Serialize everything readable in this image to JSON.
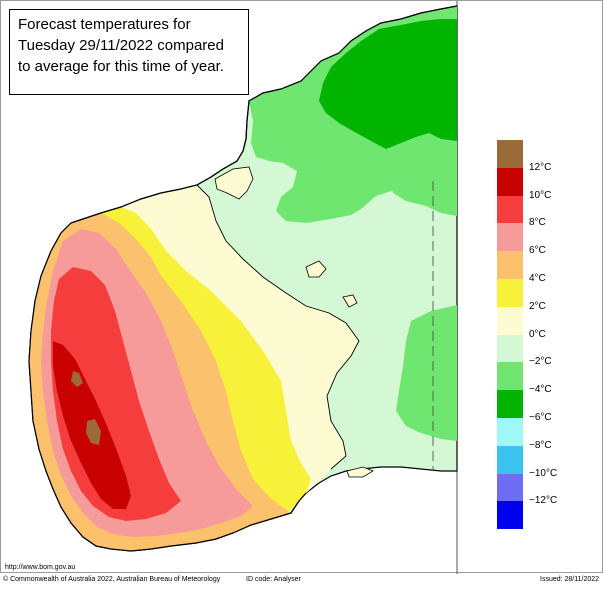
{
  "title": {
    "lines": [
      "Forecast temperatures for",
      "Tuesday 29/11/2022 compared",
      "to average for this time of year."
    ]
  },
  "legend": {
    "colors": [
      "#9b6a3a",
      "#c80000",
      "#f53d3d",
      "#f79a9a",
      "#fbc16c",
      "#f7f13a",
      "#fdfbd2",
      "#d4f7d4",
      "#6fe66f",
      "#00b400",
      "#9ff7f7",
      "#3cc4f0",
      "#6e6ef5",
      "#0000f0"
    ],
    "labels": [
      "12°C",
      "10°C",
      "8°C",
      "6°C",
      "4°C",
      "2°C",
      "0°C",
      "−2°C",
      "−4°C",
      "−6°C",
      "−8°C",
      "−10°C",
      "−12°C"
    ]
  },
  "footer": {
    "url": "http://www.bom.gov.au",
    "copyright": "© Commonwealth of Australia 2022, Australian Bureau of Meteorology",
    "id_code": "ID code: Analyser",
    "issued": "Issued: 28/11/2022"
  }
}
